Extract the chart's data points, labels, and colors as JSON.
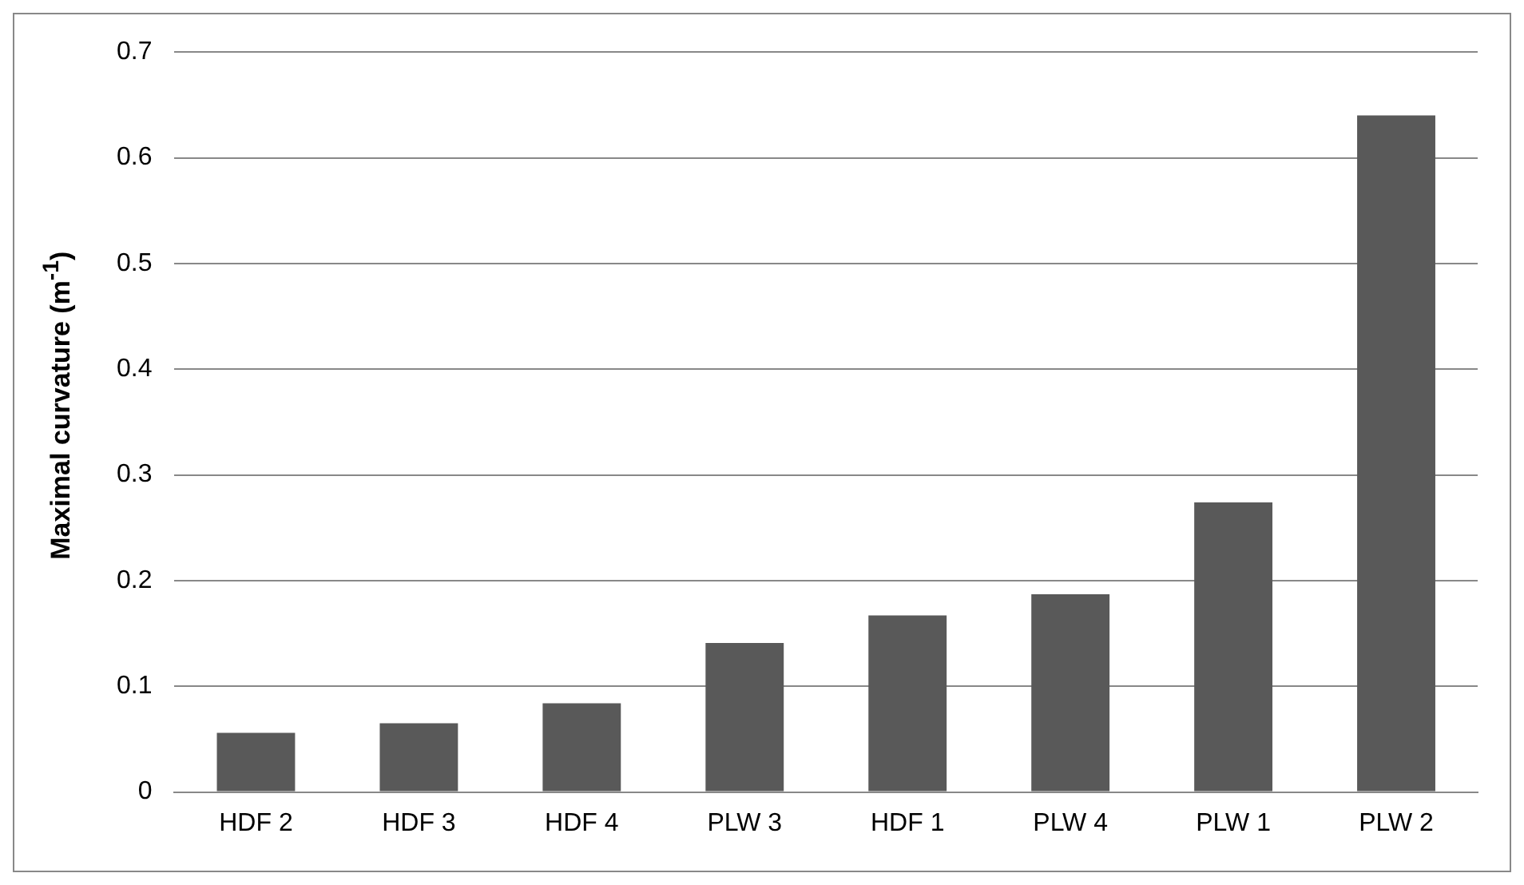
{
  "chart_data": {
    "type": "bar",
    "ylabel": "Maximal curvature (m$^{-1}$)",
    "categories": [
      "HDF 2",
      "HDF 3",
      "HDF 4",
      "PLW 3",
      "HDF 1",
      "PLW 4",
      "PLW 1",
      "PLW 2"
    ],
    "values": [
      0.056,
      0.065,
      0.084,
      0.141,
      0.167,
      0.187,
      0.274,
      0.64
    ],
    "color": "#595959",
    "ylim": [
      0,
      0.7
    ],
    "yticks": [
      0,
      0.1,
      0.2,
      0.3,
      0.4,
      0.5,
      0.6,
      0.7
    ],
    "grid": "y",
    "legend": false
  }
}
